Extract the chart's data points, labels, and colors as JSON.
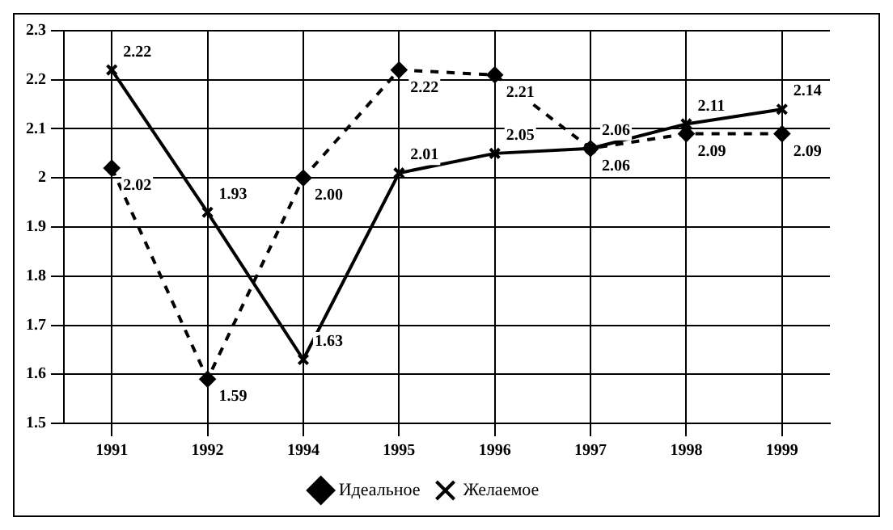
{
  "chart_data": {
    "type": "line",
    "categories": [
      "1991",
      "1992",
      "1994",
      "1995",
      "1996",
      "1997",
      "1998",
      "1999"
    ],
    "series": [
      {
        "name": "Идеальное",
        "color": "#000000",
        "values": [
          2.02,
          1.59,
          2.0,
          2.22,
          2.21,
          2.06,
          2.09,
          2.09
        ],
        "value_labels": [
          "2.02",
          "1.59",
          "2.00",
          "2.22",
          "2.21",
          "2.06",
          "2.09",
          "2.09"
        ],
        "line_style": "dashed",
        "marker": "diamond"
      },
      {
        "name": "Желаемое",
        "color": "#000000",
        "values": [
          2.22,
          1.93,
          1.63,
          2.01,
          2.05,
          2.06,
          2.11,
          2.14
        ],
        "value_labels": [
          "2.22",
          "1.93",
          "1.63",
          "2.01",
          "2.05",
          "2.06",
          "2.11",
          "2.14"
        ],
        "line_style": "solid",
        "marker": "cross"
      }
    ],
    "ylim": [
      1.5,
      2.3
    ],
    "yticks": [
      1.5,
      1.6,
      1.7,
      1.8,
      1.9,
      2,
      2.1,
      2.2,
      2.3
    ],
    "grid": true,
    "legend": "bottom"
  }
}
